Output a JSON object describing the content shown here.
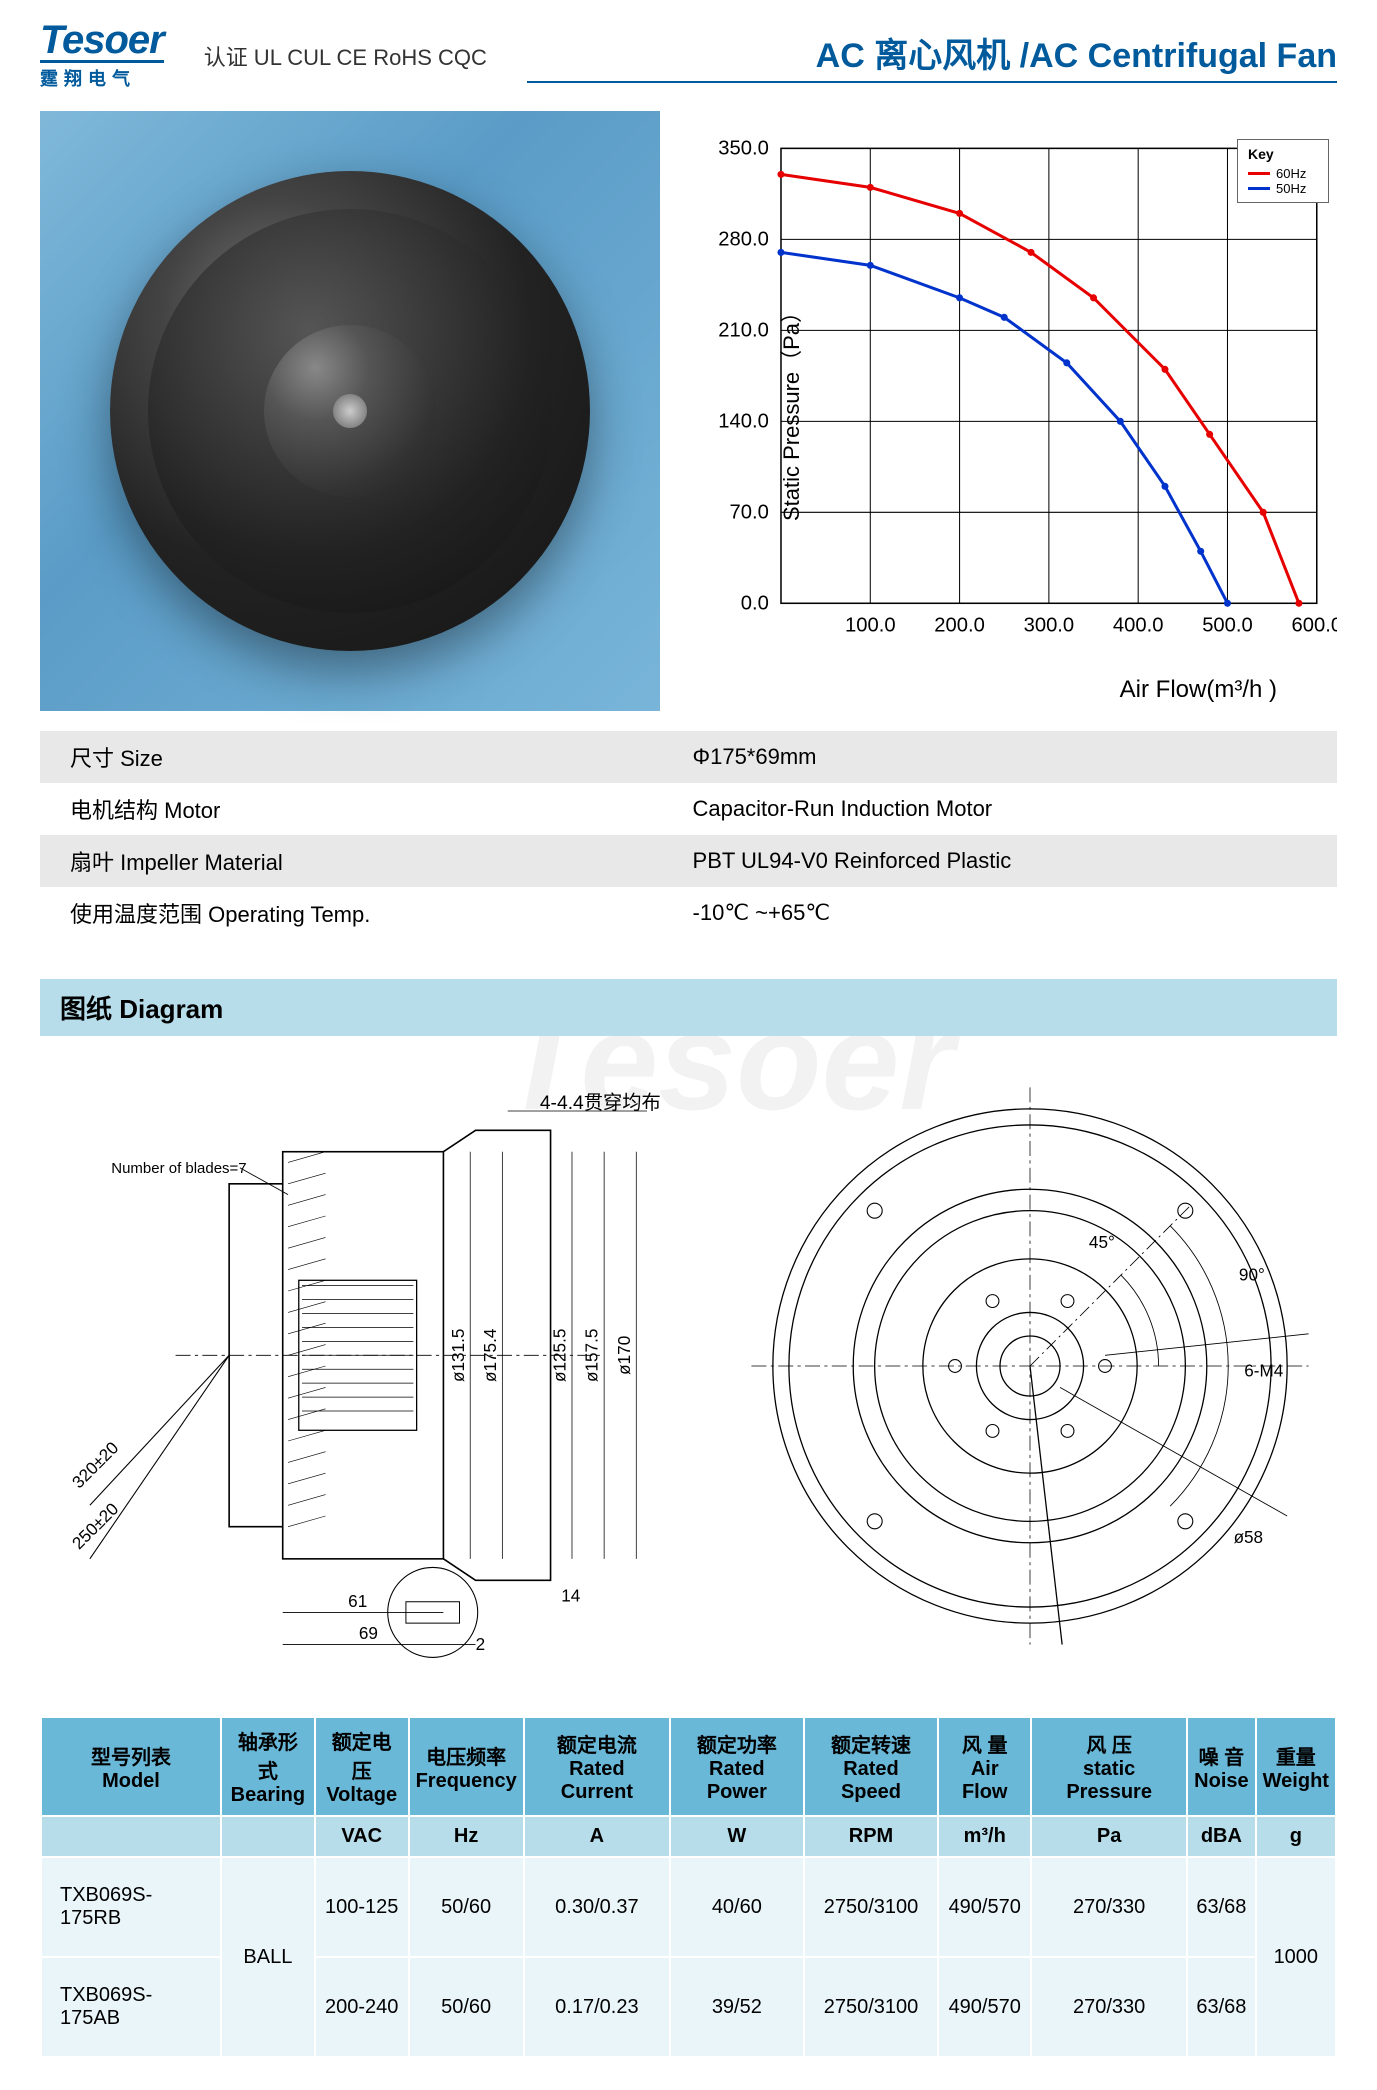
{
  "header": {
    "logo_main": "Tesoer",
    "logo_sub": "霆翔电气",
    "cert": "认证 UL CUL CE RoHS   CQC",
    "title": "AC 离心风机 /AC Centrifugal Fan"
  },
  "chart": {
    "type": "line",
    "y_label": "Static Pressure（Pa）",
    "x_label": "Air Flow(m³/h )",
    "xlim": [
      0,
      600
    ],
    "ylim": [
      0,
      350
    ],
    "x_ticks": [
      100.0,
      200.0,
      300.0,
      400.0,
      500.0,
      600.0
    ],
    "y_ticks": [
      0.0,
      70.0,
      140.0,
      210.0,
      280.0,
      350.0
    ],
    "tick_fontsize": 20,
    "axis_color": "#000000",
    "grid_color": "#000000",
    "grid_width": 1,
    "background_color": "#ffffff",
    "legend_title": "Key",
    "series": [
      {
        "name": "60Hz",
        "color": "#e60000",
        "stroke_width": 3,
        "points": [
          [
            0,
            330
          ],
          [
            100,
            320
          ],
          [
            200,
            300
          ],
          [
            280,
            270
          ],
          [
            350,
            235
          ],
          [
            430,
            180
          ],
          [
            480,
            130
          ],
          [
            540,
            70
          ],
          [
            580,
            0
          ]
        ]
      },
      {
        "name": "50Hz",
        "color": "#0033cc",
        "stroke_width": 3,
        "points": [
          [
            0,
            270
          ],
          [
            100,
            260
          ],
          [
            200,
            235
          ],
          [
            250,
            220
          ],
          [
            320,
            185
          ],
          [
            380,
            140
          ],
          [
            430,
            90
          ],
          [
            470,
            40
          ],
          [
            500,
            0
          ]
        ]
      }
    ]
  },
  "spec": {
    "rows": [
      {
        "label": "尺寸 Size",
        "value": "Φ175*69mm",
        "grey": true
      },
      {
        "label": "电机结构 Motor",
        "value": "Capacitor-Run Induction Motor",
        "grey": false
      },
      {
        "label": "扇叶 Impeller  Material",
        "value": "PBT UL94-V0 Reinforced Plastic",
        "grey": true
      },
      {
        "label": "使用温度范围 Operating Temp.",
        "value": "-10℃ ~+65℃",
        "grey": false
      }
    ]
  },
  "diagram": {
    "title": "图纸 Diagram",
    "note_blades": "Number of blades=7",
    "label_4_44": "4-4.4贯穿均布",
    "d131_5": "ø131.5",
    "d175_4": "ø175.4",
    "d125_5": "ø125.5",
    "d157_5": "ø157.5",
    "d170": "ø170",
    "d58": "ø58",
    "m4": "6-M4",
    "ang45": "45°",
    "ang90": "90°",
    "len61": "61",
    "len69": "69",
    "len14": "14",
    "len2": "2",
    "lead320": "320±20",
    "lead250": "250±20",
    "line_color": "#000000",
    "text_fontsize": 16
  },
  "table": {
    "header_bg": "#6ab8d8",
    "unit_bg": "#b7dcea",
    "cell_bg": "#eaf5fa",
    "border_color": "#ffffff",
    "columns": [
      {
        "cn": "型号列表",
        "en": "Model",
        "unit": ""
      },
      {
        "cn": "轴承形式",
        "en": "Bearing",
        "unit": ""
      },
      {
        "cn": "额定电压",
        "en": "Voltage",
        "unit": "VAC"
      },
      {
        "cn": "电压频率",
        "en": "Frequency",
        "unit": "Hz"
      },
      {
        "cn": "额定电流",
        "en": "Rated Current",
        "unit": "A"
      },
      {
        "cn": "额定功率",
        "en": "Rated Power",
        "unit": "W"
      },
      {
        "cn": "额定转速",
        "en": "Rated Speed",
        "unit": "RPM"
      },
      {
        "cn": "风 量",
        "en": "Air Flow",
        "unit": "m³/h"
      },
      {
        "cn": "风 压",
        "en": "static Pressure",
        "unit": "Pa"
      },
      {
        "cn": "噪 音",
        "en": "Noise",
        "unit": "dBA"
      },
      {
        "cn": "重量",
        "en": "Weight",
        "unit": "g"
      }
    ],
    "bearing_shared": "BALL",
    "weight_shared": "1000",
    "rows": [
      {
        "model": "TXB069S-175RB",
        "voltage": "100-125",
        "freq": "50/60",
        "current": "0.30/0.37",
        "power": "40/60",
        "speed": "2750/3100",
        "flow": "490/570",
        "press": "270/330",
        "noise": "63/68"
      },
      {
        "model": "TXB069S-175AB",
        "voltage": "200-240",
        "freq": "50/60",
        "current": "0.17/0.23",
        "power": "39/52",
        "speed": "2750/3100",
        "flow": "490/570",
        "press": "270/330",
        "noise": "63/68"
      }
    ]
  }
}
